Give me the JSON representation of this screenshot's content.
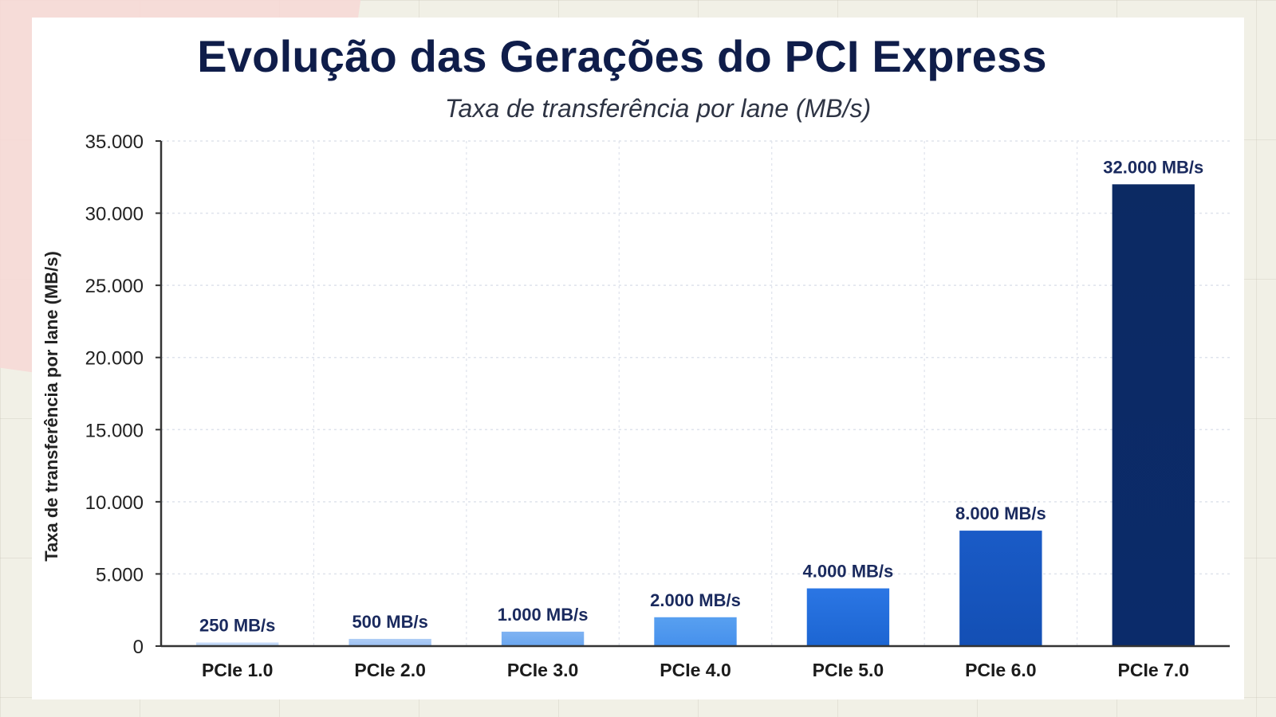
{
  "chart_data": {
    "type": "bar",
    "title": "Evolução das Gerações do PCI Express",
    "subtitle": "Taxa de transferência por lane (MB/s)",
    "ylabel": "Taxa de transferência por lane (MB/s)",
    "xlabel": "",
    "categories": [
      "PCIe 1.0",
      "PCIe 2.0",
      "PCIe 3.0",
      "PCIe 4.0",
      "PCIe 5.0",
      "PCIe 6.0",
      "PCIe 7.0"
    ],
    "values": [
      250,
      500,
      1000,
      2000,
      4000,
      8000,
      32000
    ],
    "data_labels": [
      "250 MB/s",
      "500 MB/s",
      "1.000 MB/s",
      "2.000 MB/s",
      "4.000 MB/s",
      "8.000 MB/s",
      "32.000 MB/s"
    ],
    "ylim": [
      0,
      35000
    ],
    "yticks": [
      0,
      5000,
      10000,
      15000,
      20000,
      25000,
      30000,
      35000
    ],
    "ytick_labels": [
      "0",
      "5.000",
      "10.000",
      "15.000",
      "20.000",
      "25.000",
      "30.000",
      "35.000"
    ],
    "grid": true,
    "legend": "none",
    "bar_colors": [
      "#b9d3f6",
      "#9cc0f2",
      "#6aa6ef",
      "#4690ec",
      "#1c65d2",
      "#134fb4",
      "#0b2b6a"
    ],
    "bar_color_top": [
      "#c8dcf8",
      "#aecdf5",
      "#7fb3f2",
      "#58a0f0",
      "#2b76e4",
      "#1a5bc7",
      "#0c2a63"
    ],
    "colors": {
      "title": "#0f1d4a",
      "data_label": "#1a2a5e",
      "axis": "#333333",
      "grid": "#dfe3ec"
    }
  }
}
